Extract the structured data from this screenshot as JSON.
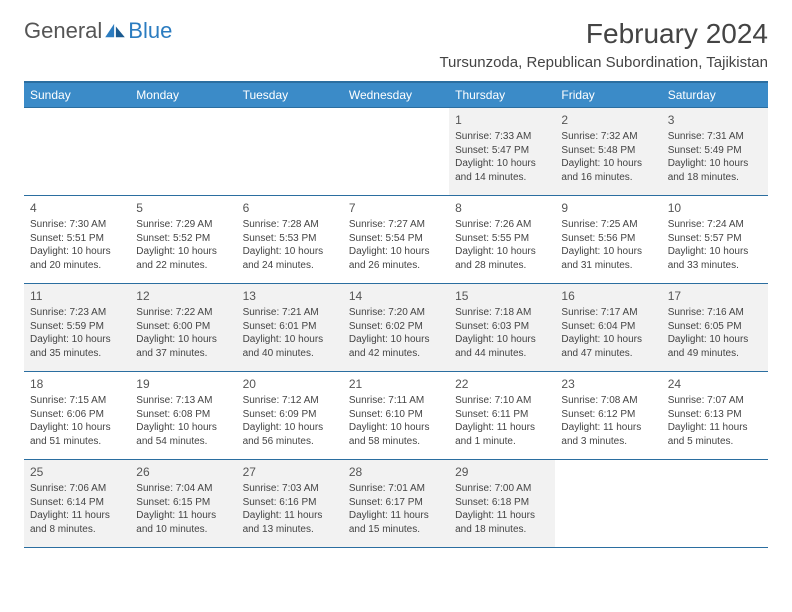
{
  "brand": {
    "name1": "General",
    "name2": "Blue"
  },
  "title": "February 2024",
  "location": "Tursunzoda, Republican Subordination, Tajikistan",
  "colors": {
    "header_bg": "#3b8bc8",
    "header_border": "#2b6ea0",
    "shade": "#f2f2f2",
    "text": "#444444"
  },
  "day_names": [
    "Sunday",
    "Monday",
    "Tuesday",
    "Wednesday",
    "Thursday",
    "Friday",
    "Saturday"
  ],
  "weeks": [
    [
      null,
      null,
      null,
      null,
      {
        "n": "1",
        "sr": "Sunrise: 7:33 AM",
        "ss": "Sunset: 5:47 PM",
        "dl": "Daylight: 10 hours and 14 minutes."
      },
      {
        "n": "2",
        "sr": "Sunrise: 7:32 AM",
        "ss": "Sunset: 5:48 PM",
        "dl": "Daylight: 10 hours and 16 minutes."
      },
      {
        "n": "3",
        "sr": "Sunrise: 7:31 AM",
        "ss": "Sunset: 5:49 PM",
        "dl": "Daylight: 10 hours and 18 minutes."
      }
    ],
    [
      {
        "n": "4",
        "sr": "Sunrise: 7:30 AM",
        "ss": "Sunset: 5:51 PM",
        "dl": "Daylight: 10 hours and 20 minutes."
      },
      {
        "n": "5",
        "sr": "Sunrise: 7:29 AM",
        "ss": "Sunset: 5:52 PM",
        "dl": "Daylight: 10 hours and 22 minutes."
      },
      {
        "n": "6",
        "sr": "Sunrise: 7:28 AM",
        "ss": "Sunset: 5:53 PM",
        "dl": "Daylight: 10 hours and 24 minutes."
      },
      {
        "n": "7",
        "sr": "Sunrise: 7:27 AM",
        "ss": "Sunset: 5:54 PM",
        "dl": "Daylight: 10 hours and 26 minutes."
      },
      {
        "n": "8",
        "sr": "Sunrise: 7:26 AM",
        "ss": "Sunset: 5:55 PM",
        "dl": "Daylight: 10 hours and 28 minutes."
      },
      {
        "n": "9",
        "sr": "Sunrise: 7:25 AM",
        "ss": "Sunset: 5:56 PM",
        "dl": "Daylight: 10 hours and 31 minutes."
      },
      {
        "n": "10",
        "sr": "Sunrise: 7:24 AM",
        "ss": "Sunset: 5:57 PM",
        "dl": "Daylight: 10 hours and 33 minutes."
      }
    ],
    [
      {
        "n": "11",
        "sr": "Sunrise: 7:23 AM",
        "ss": "Sunset: 5:59 PM",
        "dl": "Daylight: 10 hours and 35 minutes."
      },
      {
        "n": "12",
        "sr": "Sunrise: 7:22 AM",
        "ss": "Sunset: 6:00 PM",
        "dl": "Daylight: 10 hours and 37 minutes."
      },
      {
        "n": "13",
        "sr": "Sunrise: 7:21 AM",
        "ss": "Sunset: 6:01 PM",
        "dl": "Daylight: 10 hours and 40 minutes."
      },
      {
        "n": "14",
        "sr": "Sunrise: 7:20 AM",
        "ss": "Sunset: 6:02 PM",
        "dl": "Daylight: 10 hours and 42 minutes."
      },
      {
        "n": "15",
        "sr": "Sunrise: 7:18 AM",
        "ss": "Sunset: 6:03 PM",
        "dl": "Daylight: 10 hours and 44 minutes."
      },
      {
        "n": "16",
        "sr": "Sunrise: 7:17 AM",
        "ss": "Sunset: 6:04 PM",
        "dl": "Daylight: 10 hours and 47 minutes."
      },
      {
        "n": "17",
        "sr": "Sunrise: 7:16 AM",
        "ss": "Sunset: 6:05 PM",
        "dl": "Daylight: 10 hours and 49 minutes."
      }
    ],
    [
      {
        "n": "18",
        "sr": "Sunrise: 7:15 AM",
        "ss": "Sunset: 6:06 PM",
        "dl": "Daylight: 10 hours and 51 minutes."
      },
      {
        "n": "19",
        "sr": "Sunrise: 7:13 AM",
        "ss": "Sunset: 6:08 PM",
        "dl": "Daylight: 10 hours and 54 minutes."
      },
      {
        "n": "20",
        "sr": "Sunrise: 7:12 AM",
        "ss": "Sunset: 6:09 PM",
        "dl": "Daylight: 10 hours and 56 minutes."
      },
      {
        "n": "21",
        "sr": "Sunrise: 7:11 AM",
        "ss": "Sunset: 6:10 PM",
        "dl": "Daylight: 10 hours and 58 minutes."
      },
      {
        "n": "22",
        "sr": "Sunrise: 7:10 AM",
        "ss": "Sunset: 6:11 PM",
        "dl": "Daylight: 11 hours and 1 minute."
      },
      {
        "n": "23",
        "sr": "Sunrise: 7:08 AM",
        "ss": "Sunset: 6:12 PM",
        "dl": "Daylight: 11 hours and 3 minutes."
      },
      {
        "n": "24",
        "sr": "Sunrise: 7:07 AM",
        "ss": "Sunset: 6:13 PM",
        "dl": "Daylight: 11 hours and 5 minutes."
      }
    ],
    [
      {
        "n": "25",
        "sr": "Sunrise: 7:06 AM",
        "ss": "Sunset: 6:14 PM",
        "dl": "Daylight: 11 hours and 8 minutes."
      },
      {
        "n": "26",
        "sr": "Sunrise: 7:04 AM",
        "ss": "Sunset: 6:15 PM",
        "dl": "Daylight: 11 hours and 10 minutes."
      },
      {
        "n": "27",
        "sr": "Sunrise: 7:03 AM",
        "ss": "Sunset: 6:16 PM",
        "dl": "Daylight: 11 hours and 13 minutes."
      },
      {
        "n": "28",
        "sr": "Sunrise: 7:01 AM",
        "ss": "Sunset: 6:17 PM",
        "dl": "Daylight: 11 hours and 15 minutes."
      },
      {
        "n": "29",
        "sr": "Sunrise: 7:00 AM",
        "ss": "Sunset: 6:18 PM",
        "dl": "Daylight: 11 hours and 18 minutes."
      },
      null,
      null
    ]
  ]
}
